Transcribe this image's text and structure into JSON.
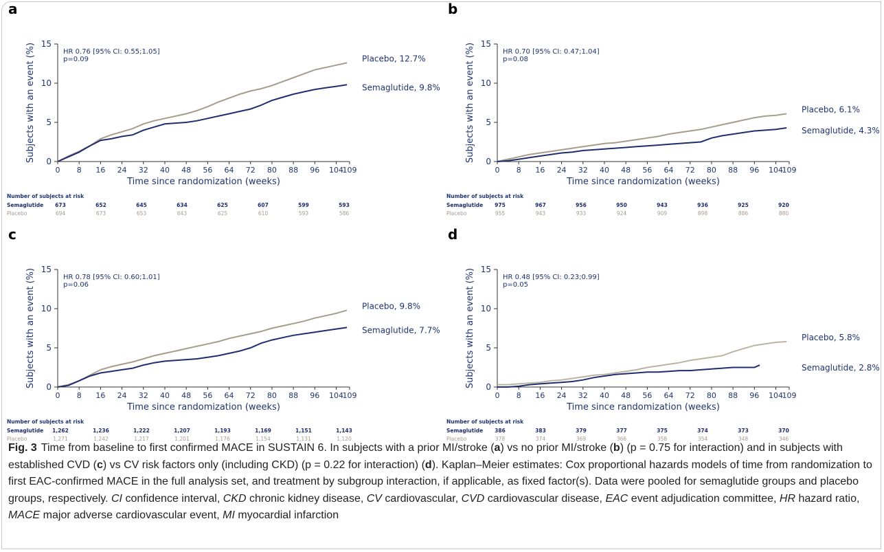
{
  "chart_data": [
    {
      "type": "line",
      "panel_label": "a",
      "ylabel": "Subjects with an event (%)",
      "xlabel": "Time since randomization (weeks)",
      "annotation": [
        "HR 0.76 [95% CI: 0.55;1.05]",
        "p=0.09"
      ],
      "x": [
        0,
        4,
        8,
        12,
        16,
        20,
        24,
        28,
        32,
        36,
        40,
        44,
        48,
        52,
        56,
        60,
        64,
        68,
        72,
        76,
        80,
        84,
        88,
        92,
        96,
        100,
        104,
        108
      ],
      "series": [
        {
          "name": "Placebo, 12.7%",
          "color": "#a89b8c",
          "values": [
            0,
            0.7,
            1.3,
            2.0,
            2.9,
            3.4,
            3.8,
            4.2,
            4.8,
            5.2,
            5.5,
            5.8,
            6.1,
            6.5,
            7.0,
            7.6,
            8.1,
            8.6,
            9.0,
            9.3,
            9.7,
            10.2,
            10.7,
            11.2,
            11.7,
            12.0,
            12.3,
            12.6
          ]
        },
        {
          "name": "Semaglutide, 9.8%",
          "color": "#1f2d6e",
          "values": [
            0,
            0.6,
            1.2,
            2.0,
            2.7,
            2.9,
            3.2,
            3.4,
            4.0,
            4.4,
            4.8,
            4.9,
            5.0,
            5.2,
            5.5,
            5.8,
            6.1,
            6.4,
            6.7,
            7.2,
            7.8,
            8.2,
            8.6,
            8.9,
            9.2,
            9.4,
            9.6,
            9.8
          ]
        }
      ],
      "xlim": [
        0,
        109
      ],
      "xticks": [
        0,
        8,
        16,
        24,
        32,
        40,
        48,
        56,
        64,
        72,
        80,
        88,
        96,
        104,
        109
      ],
      "ylim": [
        0,
        15
      ],
      "yticks": [
        0,
        5,
        10,
        15
      ],
      "risk_table": {
        "title": "Number of subjects at risk",
        "rows": [
          {
            "name": "Semaglutide",
            "color": "#1f2d6e",
            "values": [
              "673",
              "652",
              "645",
              "634",
              "625",
              "607",
              "599",
              "593"
            ]
          },
          {
            "name": "Placebo",
            "color": "#a89b8c",
            "values": [
              "694",
              "673",
              "653",
              "643",
              "625",
              "610",
              "593",
              "586"
            ]
          }
        ]
      }
    },
    {
      "type": "line",
      "panel_label": "b",
      "ylabel": "Subjects with an event (%)",
      "xlabel": "Time since randomization (weeks)",
      "annotation": [
        "HR 0.70 [95% CI: 0.47;1.04]",
        "p=0.08"
      ],
      "x": [
        0,
        4,
        8,
        12,
        16,
        20,
        24,
        28,
        32,
        36,
        40,
        44,
        48,
        52,
        56,
        60,
        64,
        68,
        72,
        76,
        80,
        84,
        88,
        92,
        96,
        100,
        104,
        108
      ],
      "series": [
        {
          "name": "Placebo, 6.1%",
          "color": "#a89b8c",
          "values": [
            0,
            0.3,
            0.6,
            0.9,
            1.1,
            1.3,
            1.5,
            1.7,
            1.9,
            2.1,
            2.3,
            2.4,
            2.6,
            2.8,
            3.0,
            3.2,
            3.5,
            3.7,
            3.9,
            4.1,
            4.4,
            4.7,
            5.0,
            5.3,
            5.6,
            5.8,
            5.9,
            6.1
          ]
        },
        {
          "name": "Semaglutide, 4.3%",
          "color": "#1f2d6e",
          "values": [
            0,
            0.1,
            0.3,
            0.5,
            0.7,
            0.9,
            1.1,
            1.2,
            1.4,
            1.5,
            1.6,
            1.7,
            1.8,
            1.9,
            2.0,
            2.1,
            2.2,
            2.3,
            2.4,
            2.5,
            3.0,
            3.3,
            3.5,
            3.7,
            3.9,
            4.0,
            4.1,
            4.3
          ]
        }
      ],
      "xlim": [
        0,
        109
      ],
      "xticks": [
        0,
        8,
        16,
        24,
        32,
        40,
        48,
        56,
        64,
        72,
        80,
        88,
        96,
        104,
        109
      ],
      "ylim": [
        0,
        15
      ],
      "yticks": [
        0,
        5,
        10,
        15
      ],
      "risk_table": {
        "title": "Number of subjects at risk",
        "rows": [
          {
            "name": "Semaglutide",
            "color": "#1f2d6e",
            "values": [
              "975",
              "967",
              "956",
              "950",
              "943",
              "936",
              "925",
              "920"
            ]
          },
          {
            "name": "Placebo",
            "color": "#a89b8c",
            "values": [
              "955",
              "943",
              "933",
              "924",
              "909",
              "898",
              "886",
              "880"
            ]
          }
        ]
      }
    },
    {
      "type": "line",
      "panel_label": "c",
      "ylabel": "Subjects with an event (%)",
      "xlabel": "Time since randomization (weeks)",
      "annotation": [
        "HR 0.78 [95% CI: 0.60;1.01]",
        "p=0.06"
      ],
      "x": [
        0,
        4,
        8,
        12,
        16,
        20,
        24,
        28,
        32,
        36,
        40,
        44,
        48,
        52,
        56,
        60,
        64,
        68,
        72,
        76,
        80,
        84,
        88,
        92,
        96,
        100,
        104,
        108
      ],
      "series": [
        {
          "name": "Placebo, 9.8%",
          "color": "#a89b8c",
          "values": [
            0,
            0.3,
            0.8,
            1.5,
            2.2,
            2.6,
            2.9,
            3.2,
            3.6,
            4.0,
            4.3,
            4.6,
            4.9,
            5.2,
            5.5,
            5.8,
            6.2,
            6.5,
            6.8,
            7.1,
            7.5,
            7.8,
            8.1,
            8.4,
            8.8,
            9.1,
            9.4,
            9.8
          ]
        },
        {
          "name": "Semaglutide, 7.7%",
          "color": "#1f2d6e",
          "values": [
            0,
            0.2,
            0.8,
            1.4,
            1.8,
            2.0,
            2.2,
            2.4,
            2.8,
            3.1,
            3.3,
            3.4,
            3.5,
            3.6,
            3.8,
            4.0,
            4.3,
            4.6,
            5.0,
            5.6,
            6.0,
            6.3,
            6.6,
            6.8,
            7.0,
            7.2,
            7.4,
            7.6
          ]
        }
      ],
      "xlim": [
        0,
        109
      ],
      "xticks": [
        0,
        8,
        16,
        24,
        32,
        40,
        48,
        56,
        64,
        72,
        80,
        88,
        96,
        104,
        109
      ],
      "ylim": [
        0,
        15
      ],
      "yticks": [
        0,
        5,
        10,
        15
      ],
      "risk_table": {
        "title": "Number of subjects at risk",
        "rows": [
          {
            "name": "Semaglutide",
            "color": "#1f2d6e",
            "values": [
              "1,262",
              "1,236",
              "1,222",
              "1,207",
              "1,193",
              "1,169",
              "1,151",
              "1,143"
            ]
          },
          {
            "name": "Placebo",
            "color": "#a89b8c",
            "values": [
              "1,271",
              "1,242",
              "1,217",
              "1,201",
              "1,176",
              "1,154",
              "1,131",
              "1,120"
            ]
          }
        ]
      }
    },
    {
      "type": "line",
      "panel_label": "d",
      "ylabel": "Subjects with an event (%)",
      "xlabel": "Time since randomization (weeks)",
      "annotation": [
        "HR 0.48 [95% CI: 0.23;0.99]",
        "p=0.05"
      ],
      "x": [
        0,
        4,
        8,
        12,
        16,
        20,
        24,
        28,
        32,
        36,
        40,
        44,
        48,
        52,
        56,
        60,
        64,
        68,
        72,
        76,
        80,
        84,
        88,
        92,
        96,
        98,
        100,
        104,
        108
      ],
      "series": [
        {
          "name": "Placebo, 5.8%",
          "color": "#bdb2a3",
          "values": [
            0.3,
            0.3,
            0.4,
            0.5,
            0.6,
            0.8,
            0.9,
            1.1,
            1.3,
            1.5,
            1.6,
            1.8,
            2.0,
            2.2,
            2.5,
            2.7,
            2.9,
            3.1,
            3.4,
            3.6,
            3.8,
            4.0,
            4.5,
            4.9,
            5.3,
            5.4,
            5.5,
            5.7,
            5.8
          ]
        },
        {
          "name": "Semaglutide, 2.8%",
          "color": "#1f2d6e",
          "values": [
            0,
            0,
            0.1,
            0.3,
            0.4,
            0.5,
            0.6,
            0.7,
            0.9,
            1.2,
            1.4,
            1.6,
            1.7,
            1.8,
            1.9,
            1.9,
            2.0,
            2.1,
            2.1,
            2.2,
            2.3,
            2.4,
            2.5,
            2.5,
            2.5,
            2.8,
            null,
            null,
            null
          ]
        }
      ],
      "xlim": [
        0,
        109
      ],
      "xticks": [
        0,
        8,
        16,
        24,
        32,
        40,
        48,
        56,
        64,
        72,
        80,
        88,
        96,
        104,
        109
      ],
      "ylim": [
        0,
        15
      ],
      "yticks": [
        0,
        5,
        10,
        15
      ],
      "risk_table": {
        "title": "Number of subjects at risk",
        "rows": [
          {
            "name": "Semaglutide",
            "color": "#1f2d6e",
            "values": [
              "386",
              "383",
              "379",
              "377",
              "375",
              "374",
              "373",
              "370"
            ]
          },
          {
            "name": "Placebo",
            "color": "#a89b8c",
            "values": [
              "378",
              "374",
              "369",
              "366",
              "358",
              "354",
              "348",
              "346"
            ]
          }
        ]
      }
    }
  ],
  "caption": {
    "runs": [
      {
        "text": "Fig. 3",
        "style": "bold"
      },
      {
        "text": "Time from baseline to first confirmed MACE in SUSTAIN 6. In subjects with a prior MI/stroke ("
      },
      {
        "text": "a",
        "style": "bold"
      },
      {
        "text": ") vs no prior MI/stroke ("
      },
      {
        "text": "b",
        "style": "bold"
      },
      {
        "text": ") (p = 0.75 for interaction) and in subjects with established CVD ("
      },
      {
        "text": "c",
        "style": "bold"
      },
      {
        "text": ") vs CV risk factors only (including CKD) (p = 0.22 for interaction) ("
      },
      {
        "text": "d",
        "style": "bold"
      },
      {
        "text": "). Kaplan–Meier estimates: Cox proportional hazards models of time from randomization to first EAC-confirmed MACE in the full analysis set, and treatment by subgroup interaction, if applicable, as fixed factor(s). Data were pooled for semaglutide groups and placebo groups, respectively. "
      },
      {
        "text": "CI",
        "style": "italic"
      },
      {
        "text": " confidence interval, "
      },
      {
        "text": "CKD",
        "style": "italic"
      },
      {
        "text": " chronic kidney disease, "
      },
      {
        "text": "CV",
        "style": "italic"
      },
      {
        "text": " cardiovascular, "
      },
      {
        "text": "CVD",
        "style": "italic"
      },
      {
        "text": " cardiovascular disease, "
      },
      {
        "text": "EAC",
        "style": "italic"
      },
      {
        "text": " event adjudication committee, "
      },
      {
        "text": "HR",
        "style": "italic"
      },
      {
        "text": " hazard ratio, "
      },
      {
        "text": "MACE",
        "style": "italic"
      },
      {
        "text": " major adverse cardiovascular event, "
      },
      {
        "text": "MI",
        "style": "italic"
      },
      {
        "text": " myocardial infarction"
      }
    ]
  }
}
